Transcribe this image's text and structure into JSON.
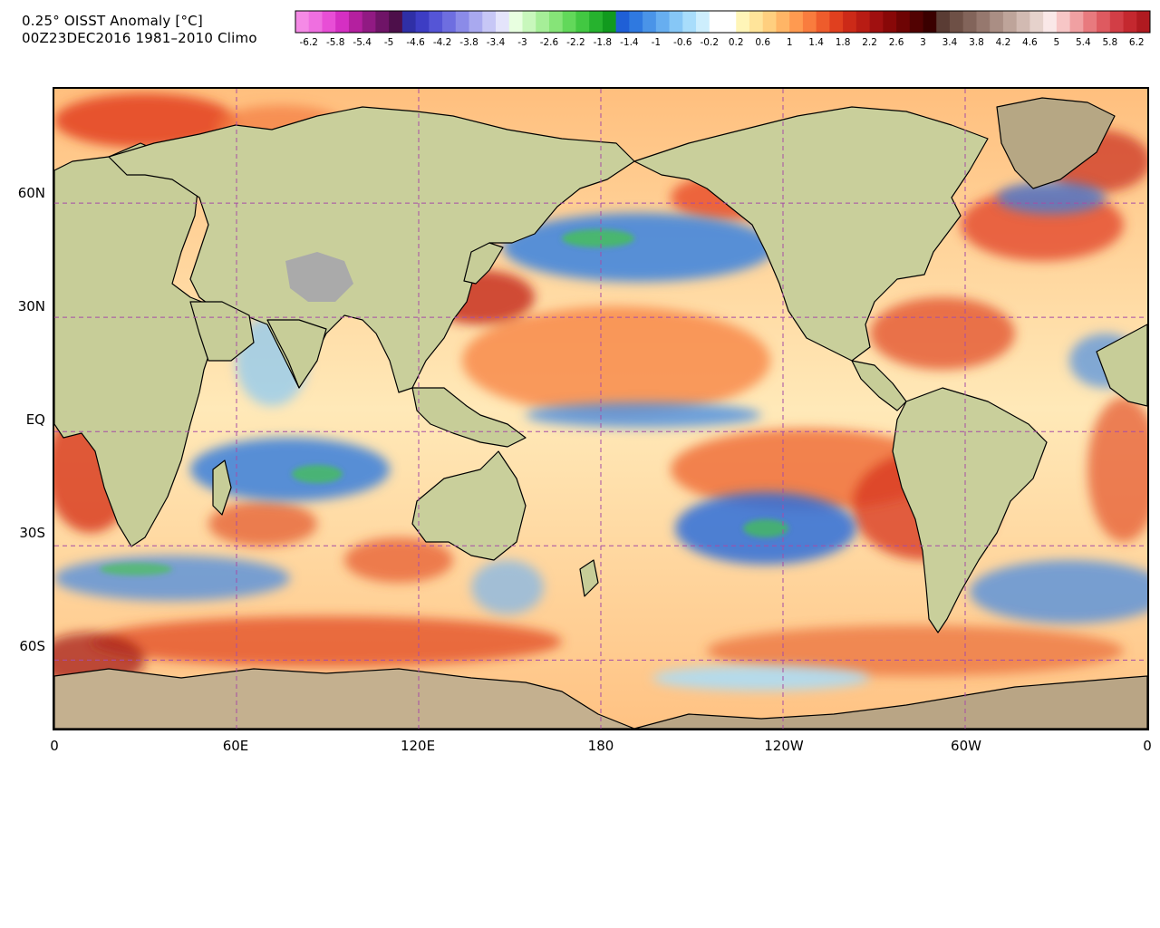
{
  "header": {
    "title_line1": "0.25° OISST Anomaly [°C]",
    "title_line2": "00Z23DEC2016 1981–2010 Climo"
  },
  "colorbar": {
    "ticks": [
      "-6.2",
      "-5.8",
      "-5.4",
      "-5",
      "-4.6",
      "-4.2",
      "-3.8",
      "-3.4",
      "-3",
      "-2.6",
      "-2.2",
      "-1.8",
      "-1.4",
      "-1",
      "-0.6",
      "-0.2",
      "0.2",
      "0.6",
      "1",
      "1.4",
      "1.8",
      "2.2",
      "2.6",
      "3",
      "3.4",
      "3.8",
      "4.2",
      "4.6",
      "5",
      "5.4",
      "5.8",
      "6.2"
    ],
    "colors": [
      "#f58ae6",
      "#ef6fe0",
      "#e84ed6",
      "#d52fc3",
      "#b4209f",
      "#911a83",
      "#6f1467",
      "#4d0f4a",
      "#2f2fa6",
      "#3d3dc4",
      "#5555d6",
      "#6e6ee0",
      "#8b8be8",
      "#a9a9ef",
      "#c7c7f6",
      "#e4e4fb",
      "#e8ffe0",
      "#c8f7bc",
      "#a6ee98",
      "#86e478",
      "#62d85a",
      "#42c842",
      "#26b22e",
      "#119a1e",
      "#1f5fd6",
      "#2f79e0",
      "#4a94e8",
      "#67aef0",
      "#86c7f6",
      "#a8ddfb",
      "#cdeefd",
      "#ffffff",
      "#ffffff",
      "#fff5b8",
      "#ffe49a",
      "#ffcf7f",
      "#ffb566",
      "#ff9a50",
      "#f97c3e",
      "#ee5c2c",
      "#e0401f",
      "#cc2a18",
      "#b81c14",
      "#a01010",
      "#880808",
      "#6e0404",
      "#520202",
      "#3a0000",
      "#5a3c34",
      "#6e5046",
      "#82645a",
      "#96786e",
      "#aa8e84",
      "#bea49a",
      "#d2bab2",
      "#e6d2cc",
      "#fae8e8",
      "#f7c6c6",
      "#f0a0a2",
      "#e87a7e",
      "#de5a60",
      "#d23e46",
      "#c4282f",
      "#b01a20"
    ]
  },
  "map": {
    "projection": "cylindrical-equidistant",
    "lon_range": [
      0,
      360
    ],
    "lat_range": [
      -78,
      90
    ],
    "gridlines": "dashed-purple",
    "lat_labels": [
      "60N",
      "30N",
      "EQ",
      "30S",
      "60S"
    ],
    "lon_labels": [
      "0",
      "60E",
      "120E",
      "180",
      "120W",
      "60W",
      "0"
    ]
  },
  "colors": {
    "land": "#c9cf9b",
    "land_high": "#b6a784",
    "ice": "#a7a7a7",
    "warm": "#f4783f",
    "warm_strong": "#c7271a",
    "warm_light": "#ffd089",
    "cool": "#5e9be6",
    "cool_strong": "#1f5fd6",
    "cool_green": "#42c842",
    "grid": "#a64ca6"
  }
}
